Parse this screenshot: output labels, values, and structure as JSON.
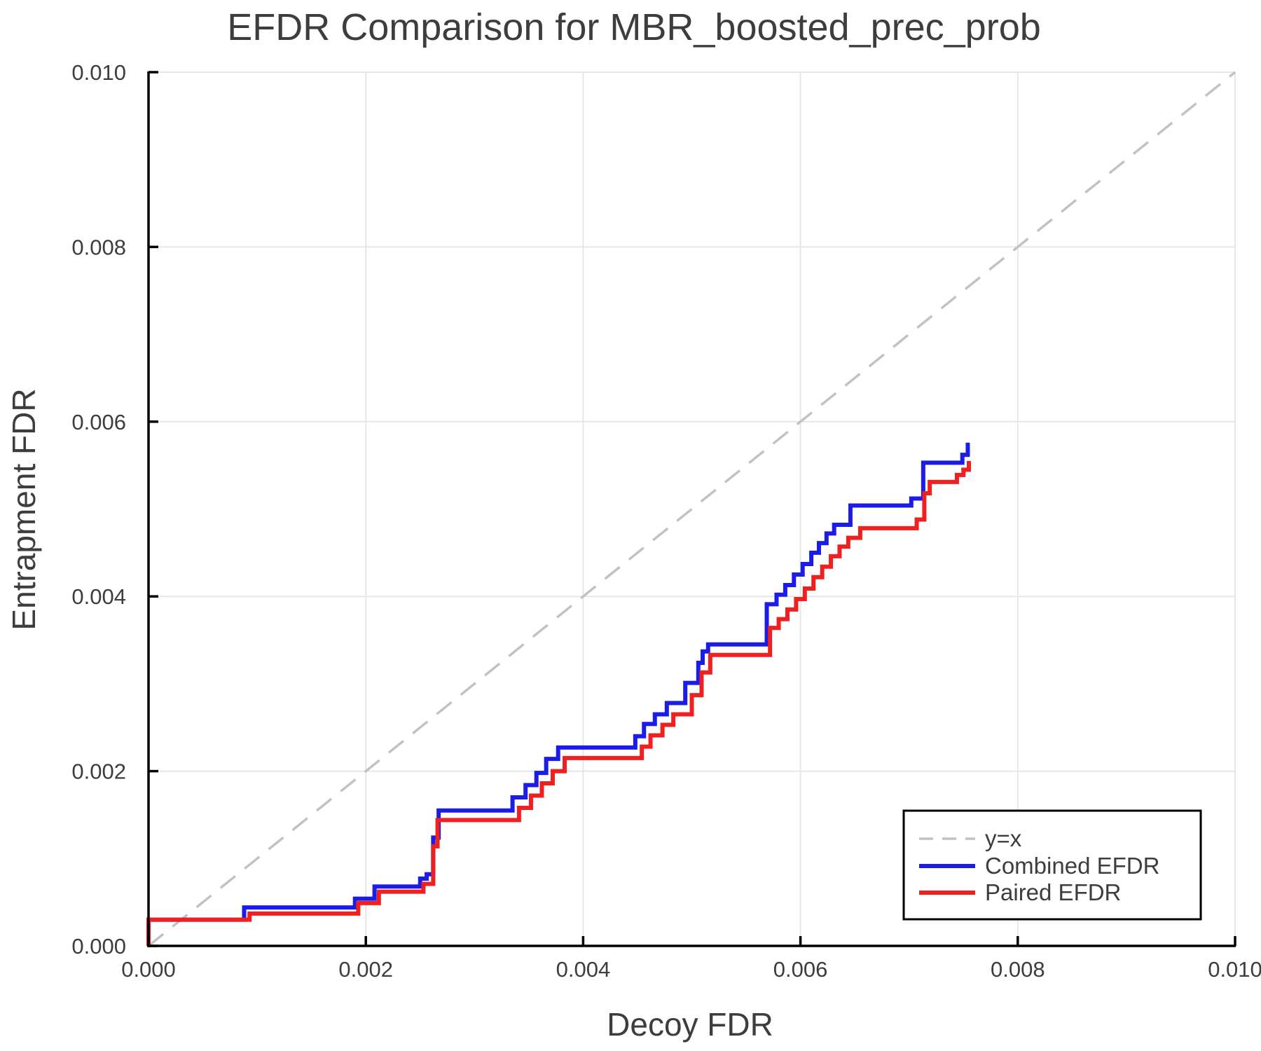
{
  "chart_data": {
    "type": "line",
    "title": "EFDR Comparison for MBR_boosted_prec_prob",
    "xlabel": "Decoy FDR",
    "ylabel": "Entrapment FDR",
    "xlim": [
      0.0,
      0.01
    ],
    "ylim": [
      0.0,
      0.01
    ],
    "grid": true,
    "xticks": {
      "values": [
        0.0,
        0.002,
        0.004,
        0.006,
        0.008,
        0.01
      ],
      "labels": [
        "0.000",
        "0.002",
        "0.004",
        "0.006",
        "0.008",
        "0.010"
      ]
    },
    "yticks": {
      "values": [
        0.0,
        0.002,
        0.004,
        0.006,
        0.008,
        0.01
      ],
      "labels": [
        "0.000",
        "0.002",
        "0.004",
        "0.006",
        "0.008",
        "0.010"
      ]
    },
    "colors": {
      "combined": "#1c1ce9",
      "paired": "#f02020",
      "identity": "#c2c2c2",
      "text": "#3d3d3d",
      "grid": "#e7e7e7",
      "spine": "#000000",
      "legend_bg": "#ffffff",
      "legend_border": "#000000"
    },
    "legend": {
      "position": "lower right",
      "entries": [
        {
          "label": "y=x",
          "style": "dashed",
          "color": "#c2c2c2"
        },
        {
          "label": "Combined EFDR",
          "style": "solid",
          "color": "#1c1ce9"
        },
        {
          "label": "Paired EFDR",
          "style": "solid",
          "color": "#f02020"
        }
      ]
    },
    "series": [
      {
        "name": "y=x",
        "type": "identity",
        "color": "#c2c2c2",
        "points": [
          [
            0.0,
            0.0
          ],
          [
            0.01,
            0.01
          ]
        ]
      },
      {
        "name": "Combined EFDR",
        "type": "step",
        "color": "#1c1ce9",
        "start_from_zero": true,
        "points": [
          [
            0.0,
            0.0003
          ],
          [
            0.00088,
            0.00044
          ],
          [
            0.0019,
            0.00054
          ],
          [
            0.00208,
            0.00068
          ],
          [
            0.0025,
            0.00077
          ],
          [
            0.00256,
            0.00082
          ],
          [
            0.00262,
            0.00124
          ],
          [
            0.00267,
            0.00155
          ],
          [
            0.00335,
            0.0017
          ],
          [
            0.00347,
            0.00184
          ],
          [
            0.00357,
            0.00198
          ],
          [
            0.00366,
            0.00214
          ],
          [
            0.00377,
            0.00227
          ],
          [
            0.00448,
            0.0024
          ],
          [
            0.00456,
            0.00254
          ],
          [
            0.00466,
            0.00265
          ],
          [
            0.00477,
            0.00278
          ],
          [
            0.00494,
            0.00301
          ],
          [
            0.00506,
            0.00324
          ],
          [
            0.0051,
            0.00337
          ],
          [
            0.00515,
            0.00345
          ],
          [
            0.00569,
            0.00391
          ],
          [
            0.00578,
            0.00402
          ],
          [
            0.00586,
            0.00413
          ],
          [
            0.00594,
            0.00425
          ],
          [
            0.00602,
            0.00437
          ],
          [
            0.0061,
            0.0045
          ],
          [
            0.00617,
            0.00461
          ],
          [
            0.00624,
            0.00472
          ],
          [
            0.00631,
            0.00482
          ],
          [
            0.00646,
            0.00504
          ],
          [
            0.00702,
            0.00512
          ],
          [
            0.00713,
            0.00553
          ],
          [
            0.00749,
            0.00562
          ],
          [
            0.00754,
            0.00576
          ]
        ]
      },
      {
        "name": "Paired EFDR",
        "type": "step",
        "color": "#f02020",
        "start_from_zero": true,
        "points": [
          [
            0.0,
            0.0003
          ],
          [
            0.00093,
            0.00037
          ],
          [
            0.00193,
            0.00049
          ],
          [
            0.00212,
            0.00062
          ],
          [
            0.00253,
            0.00071
          ],
          [
            0.00262,
            0.00114
          ],
          [
            0.00266,
            0.00144
          ],
          [
            0.00341,
            0.00158
          ],
          [
            0.00352,
            0.00172
          ],
          [
            0.00362,
            0.00186
          ],
          [
            0.00372,
            0.002
          ],
          [
            0.00383,
            0.00215
          ],
          [
            0.00454,
            0.00228
          ],
          [
            0.00462,
            0.00241
          ],
          [
            0.00473,
            0.00253
          ],
          [
            0.00483,
            0.00265
          ],
          [
            0.005,
            0.00287
          ],
          [
            0.00509,
            0.00313
          ],
          [
            0.00517,
            0.00333
          ],
          [
            0.00572,
            0.00364
          ],
          [
            0.0058,
            0.00374
          ],
          [
            0.00588,
            0.00385
          ],
          [
            0.00596,
            0.00397
          ],
          [
            0.00604,
            0.00409
          ],
          [
            0.00612,
            0.00422
          ],
          [
            0.0062,
            0.00434
          ],
          [
            0.00628,
            0.00446
          ],
          [
            0.00636,
            0.00457
          ],
          [
            0.00644,
            0.00467
          ],
          [
            0.00655,
            0.00478
          ],
          [
            0.00707,
            0.00488
          ],
          [
            0.00714,
            0.00518
          ],
          [
            0.00719,
            0.00531
          ],
          [
            0.00744,
            0.00539
          ],
          [
            0.0075,
            0.00545
          ],
          [
            0.00755,
            0.00555
          ]
        ]
      }
    ]
  }
}
